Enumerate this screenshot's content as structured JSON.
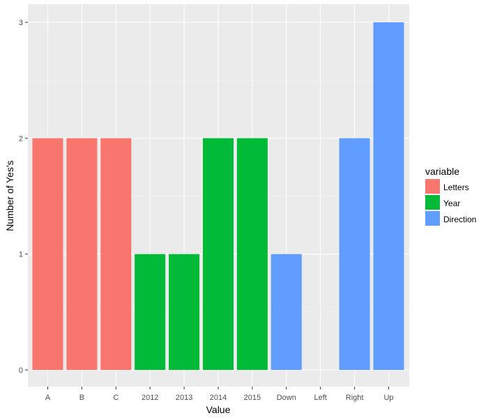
{
  "chart_data": {
    "type": "bar",
    "xlabel": "Value",
    "ylabel": "Number of Yes's",
    "categories": [
      "A",
      "B",
      "C",
      "2012",
      "2013",
      "2014",
      "2015",
      "Down",
      "Left",
      "Right",
      "Up"
    ],
    "values": [
      2,
      2,
      2,
      1,
      1,
      2,
      2,
      1,
      0,
      2,
      3
    ],
    "groups": [
      "Letters",
      "Letters",
      "Letters",
      "Year",
      "Year",
      "Year",
      "Year",
      "Direction",
      "Direction",
      "Direction",
      "Direction"
    ],
    "yticks": [
      "0",
      "1",
      "2",
      "3"
    ],
    "ylim": [
      0,
      3
    ],
    "grid": true,
    "legend": {
      "title": "variable",
      "position": "right",
      "entries": [
        {
          "label": "Letters",
          "color": "#F8766D"
        },
        {
          "label": "Year",
          "color": "#00BA38"
        },
        {
          "label": "Direction",
          "color": "#619CFF"
        }
      ]
    },
    "colors": {
      "panel": "#EBEBEB",
      "grid": "#FFFFFF",
      "Letters": "#F8766D",
      "Year": "#00BA38",
      "Direction": "#619CFF"
    }
  }
}
